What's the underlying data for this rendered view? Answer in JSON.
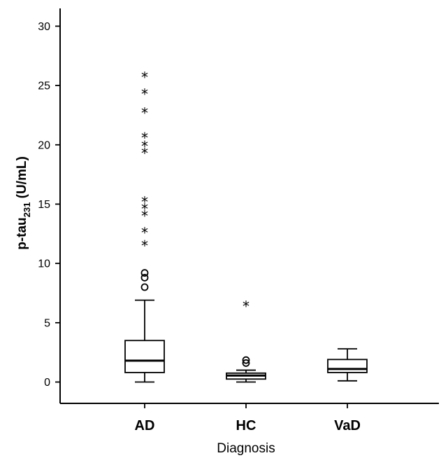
{
  "chart_data": {
    "type": "box",
    "xlabel": "Diagnosis",
    "ylabel": {
      "main": "p-tau",
      "subscript": "231",
      "unit": " (U/mL)"
    },
    "ylim": [
      -1.8,
      31.5
    ],
    "yticks": [
      0,
      5,
      10,
      15,
      20,
      25,
      30
    ],
    "ytick_labels": [
      "0",
      "5",
      "10",
      "15",
      "20",
      "25",
      "30"
    ],
    "grid": false,
    "categories": [
      "AD",
      "HC",
      "VaD"
    ],
    "groups": [
      {
        "name": "AD",
        "whisker_low": 0.0,
        "q1": 0.8,
        "median": 1.8,
        "q3": 3.5,
        "whisker_high": 6.9,
        "outliers": [
          8.0,
          8.8,
          9.2
        ],
        "extremes": [
          11.6,
          12.7,
          14.1,
          14.7,
          15.3,
          19.4,
          20.0,
          20.7,
          22.8,
          24.4,
          25.8
        ]
      },
      {
        "name": "HC",
        "whisker_low": 0.0,
        "q1": 0.25,
        "median": 0.55,
        "q3": 0.75,
        "whisker_high": 1.0,
        "outliers": [
          1.6,
          1.85
        ],
        "extremes": [
          6.5
        ]
      },
      {
        "name": "VaD",
        "whisker_low": 0.1,
        "q1": 0.8,
        "median": 1.1,
        "q3": 1.9,
        "whisker_high": 2.8,
        "outliers": [],
        "extremes": []
      }
    ]
  }
}
